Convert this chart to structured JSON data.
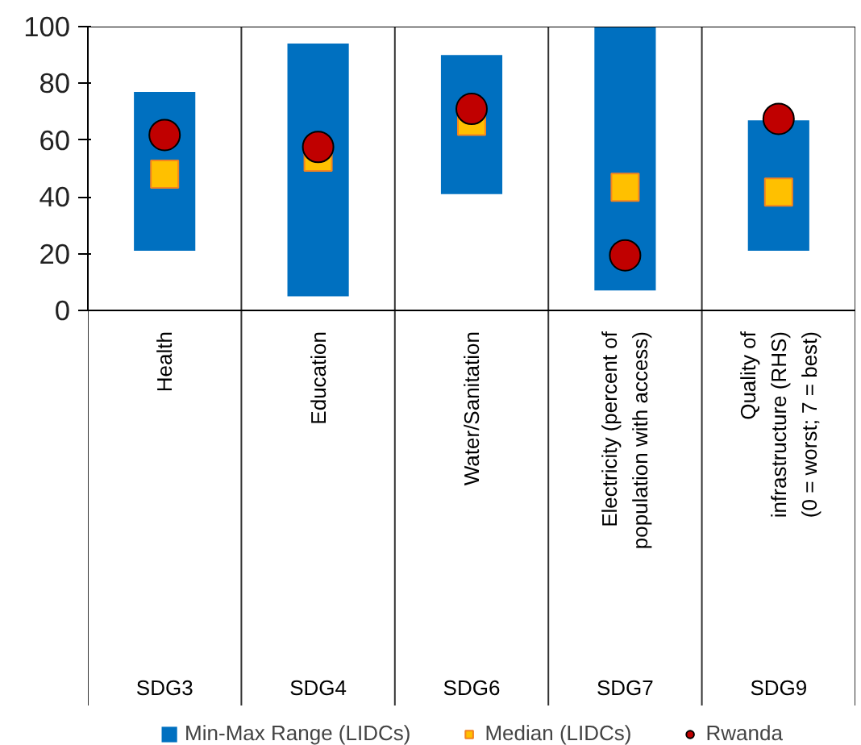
{
  "chart_data": {
    "type": "bar",
    "categories": [
      "Health",
      "Education",
      "Water/Sanitation",
      "Electricity (percent of\npopulation with access)",
      "Quality of\ninfrastructure (RHS)\n(0 = worst; 7 = best)"
    ],
    "series": [
      {
        "name": "Min-Max Range (LIDCs)",
        "color": "#0070c0",
        "base": [
          21,
          5,
          41,
          7,
          21
        ],
        "values": [
          56,
          89,
          49,
          93,
          46
        ]
      },
      {
        "name": "Median (LIDCs)",
        "type": "scatter",
        "marker": "square",
        "color": "#ffc000",
        "values": [
          48,
          54,
          66.6,
          43.4,
          41.7
        ]
      },
      {
        "name": "Rwanda",
        "type": "scatter",
        "marker": "circle",
        "color": "#c00000",
        "values": [
          61.8,
          57.6,
          71,
          19.4,
          67.5
        ]
      }
    ],
    "annotations": [
      "SDG3",
      "SDG4",
      "SDG6",
      "SDG7",
      "SDG9"
    ],
    "ylim": [
      0,
      100
    ],
    "yticks": [
      0,
      20,
      40,
      60,
      80,
      100
    ],
    "legend": "bottom"
  }
}
